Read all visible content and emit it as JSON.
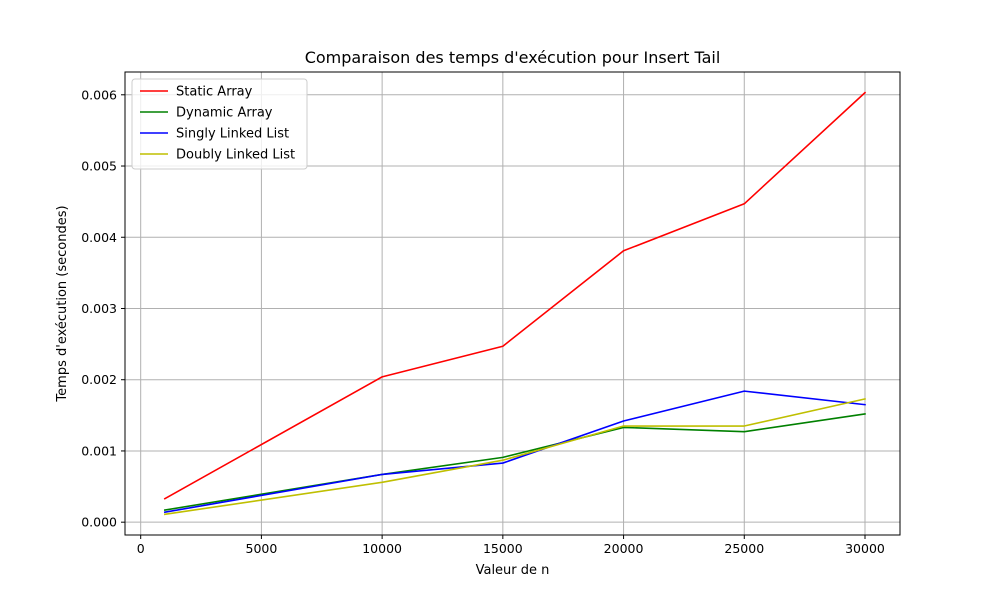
{
  "chart_data": {
    "type": "line",
    "title": "Comparaison des temps d'exécution pour Insert Tail",
    "xlabel": "Valeur de n",
    "ylabel": "Temps d'exécution (secondes)",
    "xlim": [
      -650,
      31450
    ],
    "ylim": [
      -0.00018,
      0.00632
    ],
    "xticks": [
      0,
      5000,
      10000,
      15000,
      20000,
      25000,
      30000
    ],
    "xtick_labels": [
      "0",
      "5000",
      "10000",
      "15000",
      "20000",
      "25000",
      "30000"
    ],
    "yticks": [
      0,
      0.001,
      0.002,
      0.003,
      0.004,
      0.005,
      0.006
    ],
    "ytick_labels": [
      "0.000",
      "0.001",
      "0.002",
      "0.003",
      "0.004",
      "0.005",
      "0.006"
    ],
    "grid": true,
    "legend_position": "upper-left",
    "x": [
      1000,
      10000,
      15000,
      20000,
      25000,
      30000
    ],
    "series": [
      {
        "name": "Static Array",
        "color": "#ff0000",
        "values": [
          0.00033,
          0.00204,
          0.00247,
          0.00381,
          0.00447,
          0.00603
        ]
      },
      {
        "name": "Dynamic Array",
        "color": "#008000",
        "values": [
          0.00017,
          0.00067,
          0.00091,
          0.00133,
          0.00127,
          0.00152
        ]
      },
      {
        "name": "Singly Linked List",
        "color": "#0000ff",
        "values": [
          0.00014,
          0.00067,
          0.00083,
          0.00142,
          0.00184,
          0.00165
        ]
      },
      {
        "name": "Doubly Linked List",
        "color": "#bfbf00",
        "values": [
          0.00011,
          0.00056,
          0.00087,
          0.00135,
          0.00135,
          0.00173
        ]
      }
    ]
  }
}
